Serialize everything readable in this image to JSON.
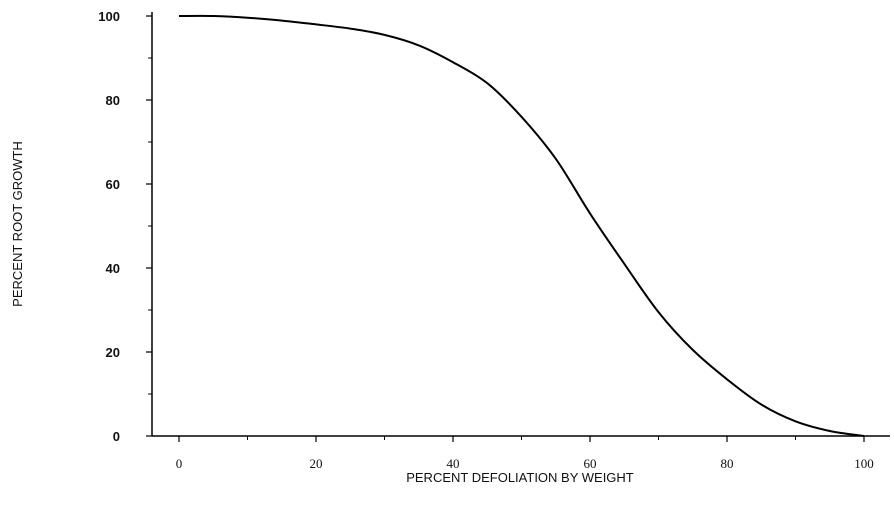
{
  "chart_data": {
    "type": "line",
    "title": "",
    "xlabel": "PERCENT DEFOLIATION BY WEIGHT",
    "ylabel": "PERCENT ROOT GROWTH",
    "xlim": [
      0,
      100
    ],
    "ylim": [
      0,
      100
    ],
    "xticks": [
      0,
      20,
      40,
      60,
      80,
      100
    ],
    "yticks": [
      0,
      20,
      40,
      60,
      80,
      100
    ],
    "grid": false,
    "series": [
      {
        "x": [
          0,
          5,
          10,
          15,
          20,
          25,
          30,
          35,
          40,
          45,
          50,
          55,
          60,
          65,
          70,
          75,
          80,
          85,
          90,
          95,
          100
        ],
        "y": [
          100,
          100,
          99.6,
          98.9,
          98,
          97,
          95.5,
          93,
          89,
          84,
          76,
          66,
          53,
          41,
          29.5,
          20.5,
          13.5,
          7.5,
          3.5,
          1.2,
          0
        ],
        "color": "#000000"
      }
    ]
  }
}
